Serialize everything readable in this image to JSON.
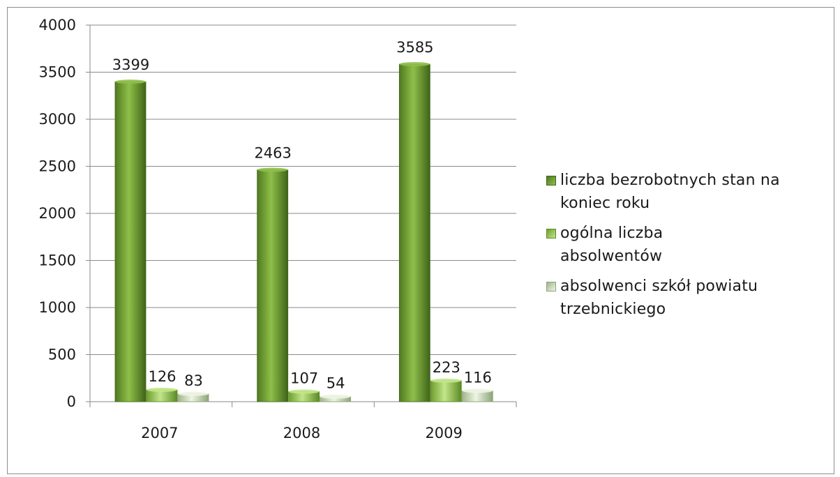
{
  "chart_data": {
    "type": "bar",
    "categories": [
      "2007",
      "2008",
      "2009"
    ],
    "series": [
      {
        "name": "liczba bezrobotnych stan na koniec roku",
        "values": [
          3399,
          2463,
          3585
        ],
        "color": "#7aa83a"
      },
      {
        "name": "ogólna liczba absolwentów",
        "values": [
          126,
          107,
          223
        ],
        "color": "#a8d46a"
      },
      {
        "name": "absolwenci szkół powiatu trzebnickiego",
        "values": [
          83,
          54,
          116
        ],
        "color": "#cfe0b8"
      }
    ],
    "ylim": [
      0,
      4000
    ],
    "yticks": [
      "0",
      "500",
      "1000",
      "1500",
      "2000",
      "2500",
      "3000",
      "3500",
      "4000"
    ],
    "title": "",
    "xlabel": "",
    "ylabel": "",
    "grid": true,
    "legend_position": "right"
  }
}
